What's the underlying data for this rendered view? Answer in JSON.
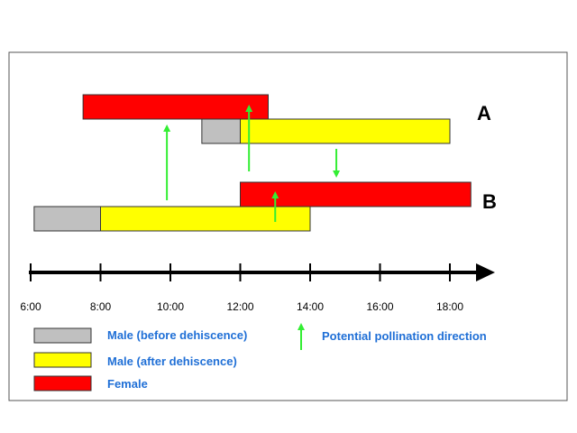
{
  "colors": {
    "female": "#ff0000",
    "male_after": "#ffff00",
    "male_before": "#c0c0c0",
    "arrow": "#33ee33",
    "legend_text": "#1f6fd6",
    "bar_stroke": "#333333",
    "axis": "#000000"
  },
  "groups": {
    "a_label": "A",
    "b_label": "B"
  },
  "axis": {
    "ticks": [
      "6:00",
      "8:00",
      "10:00",
      "12:00",
      "14:00",
      "16:00",
      "18:00"
    ]
  },
  "chart_data": {
    "type": "gantt",
    "x_range_hours": [
      6,
      19
    ],
    "bars": [
      {
        "group": "A",
        "kind": "female",
        "start": 7.5,
        "end": 12.8
      },
      {
        "group": "A",
        "kind": "male_before",
        "start": 10.9,
        "end": 12.0
      },
      {
        "group": "A",
        "kind": "male_after",
        "start": 12.0,
        "end": 18.0
      },
      {
        "group": "B",
        "kind": "female",
        "start": 12.0,
        "end": 18.6
      },
      {
        "group": "B",
        "kind": "male_before",
        "start": 6.1,
        "end": 8.0
      },
      {
        "group": "B",
        "kind": "male_after",
        "start": 8.0,
        "end": 14.0
      }
    ],
    "pollination_arrows": [
      {
        "at": 9.9,
        "from": "B male",
        "to": "A female"
      },
      {
        "at": 12.25,
        "from": "A male",
        "to": "A female"
      },
      {
        "at": 14.75,
        "from": "A male",
        "to": "B female"
      },
      {
        "at": 13.0,
        "from": "B male",
        "to": "B female"
      }
    ]
  },
  "legend": {
    "male_before": "Male (before dehiscence)",
    "male_after": "Male (after dehiscence)",
    "female": "Female",
    "pollination": "Potential pollination direction"
  }
}
